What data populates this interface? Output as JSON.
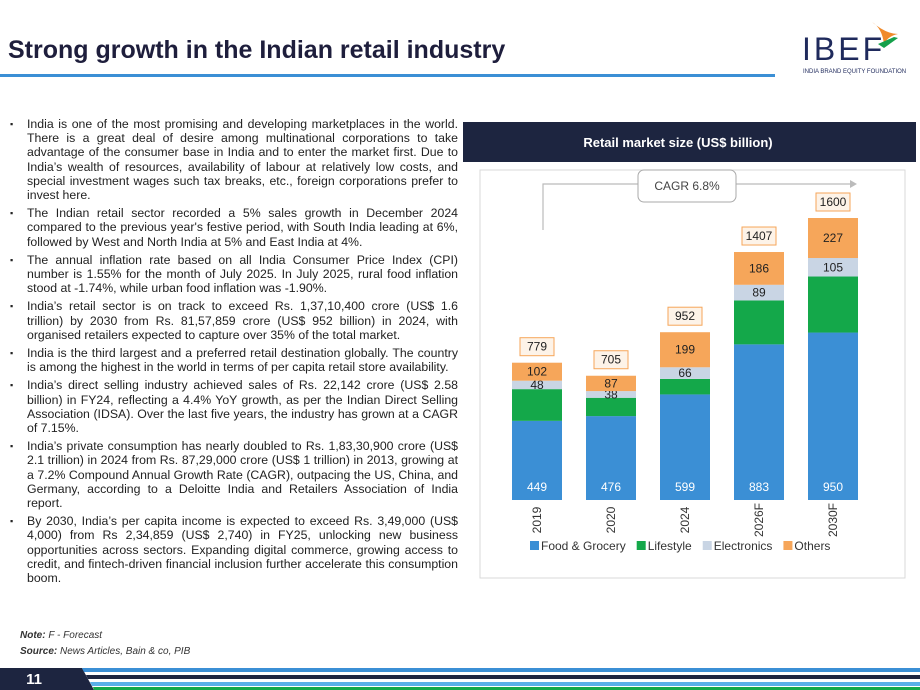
{
  "header": {
    "title": "Strong growth in the Indian retail industry",
    "logo": "IBEF",
    "logo_tagline": "INDIA BRAND EQUITY FOUNDATION"
  },
  "bullets": [
    "India is one of the most promising and developing marketplaces in the world. There is a great deal of desire among multinational corporations to take advantage of the consumer base in India and to enter the market first. Due to India’s wealth of resources, availability of labour at relatively low costs, and special investment wages such tax breaks, etc., foreign corporations prefer to invest here.",
    "The Indian retail sector recorded a 5% sales growth in December 2024 compared to the previous year's festive period, with South India leading at 6%, followed by West and North India at 5% and East India at 4%.",
    "The annual inflation rate based on all India Consumer Price Index (CPI) number is 1.55% for the month of July 2025. In July 2025, rural food inflation stood at -1.74%, while urban food inflation was -1.90%.",
    "India’s retail sector is on track to exceed Rs. 1,37,10,400 crore (US$ 1.6 trillion) by 2030 from Rs. 81,57,859 crore (US$ 952 billion) in 2024, with organised retailers expected to capture over 35% of the total market.",
    "India is the third largest and a preferred retail destination globally. The country is among the highest in the world in terms of per capita retail store availability.",
    "India’s direct selling industry achieved sales of Rs. 22,142 crore (US$ 2.58 billion) in FY24, reflecting a 4.4% YoY growth, as per the Indian Direct Selling Association (IDSA). Over the last five years, the industry has grown at a CAGR of 7.15%.",
    "India’s private consumption has nearly doubled to Rs. 1,83,30,900 crore (US$ 2.1 trillion) in 2024 from Rs. 87,29,000 crore (US$ 1 trillion) in 2013, growing at a 7.2% Compound Annual Growth Rate (CAGR), outpacing the US, China, and Germany, according to a Deloitte India and Retailers Association of India report.",
    "By 2030, India’s per capita income is expected to exceed Rs. 3,49,000 (US$ 4,000) from Rs 2,34,859 (US$ 2,740) in FY25, unlocking new business opportunities across sectors. Expanding digital commerce, growing access to credit, and fintech-driven financial inclusion further accelerate this consumption boom."
  ],
  "chart_data": {
    "type": "stacked_bar",
    "title": "Retail market size (US$ billion)",
    "categories": [
      "2019",
      "2020",
      "2024",
      "2026F",
      "2030F"
    ],
    "series": [
      {
        "name": "Food & Grocery",
        "color": "#3b8fd5",
        "values": [
          449,
          476,
          599,
          883,
          950
        ],
        "show_values": true
      },
      {
        "name": "Lifestyle",
        "color": "#14a84a",
        "values": [
          180,
          104,
          88,
          249,
          318
        ],
        "show_values": false
      },
      {
        "name": "Electronics",
        "color": "#c9d5e4",
        "values": [
          48,
          38,
          66,
          89,
          105
        ],
        "show_values": true
      },
      {
        "name": "Others",
        "color": "#f6a65a",
        "values": [
          102,
          87,
          199,
          186,
          227
        ],
        "show_values": true
      }
    ],
    "totals": [
      779,
      705,
      952,
      1407,
      1600
    ],
    "annotation": "CAGR 6.8%"
  },
  "footer": {
    "note_label": "Note:",
    "note": "F - Forecast",
    "source_label": "Source:",
    "source": "News Articles, Bain & co, PIB",
    "page": "11"
  }
}
